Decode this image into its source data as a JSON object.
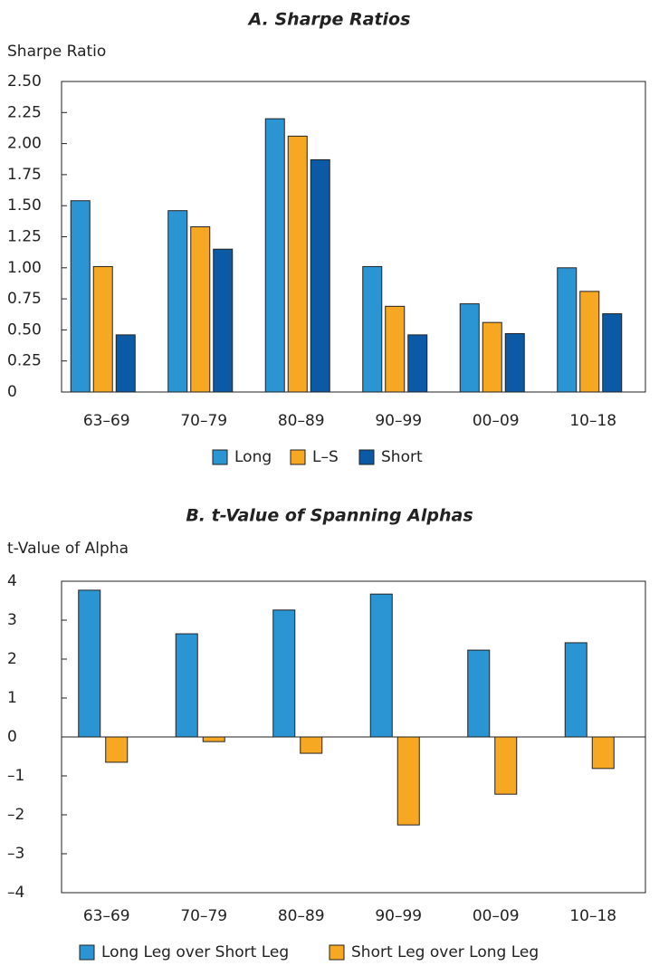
{
  "chart_data": [
    {
      "type": "bar",
      "title": "A. Sharpe Ratios",
      "y_label": "Sharpe Ratio",
      "categories": [
        "63–69",
        "70–79",
        "80–89",
        "90–99",
        "00–09",
        "10–18"
      ],
      "series": [
        {
          "name": "Long",
          "color": "#2b95d3",
          "values": [
            1.54,
            1.46,
            2.2,
            1.01,
            0.71,
            1.0
          ]
        },
        {
          "name": "L–S",
          "color": "#f7a823",
          "values": [
            1.01,
            1.33,
            2.06,
            0.69,
            0.56,
            0.81
          ]
        },
        {
          "name": "Short",
          "color": "#0c5aa6",
          "values": [
            0.46,
            1.15,
            1.87,
            0.46,
            0.47,
            0.63
          ]
        }
      ],
      "ylim": [
        0,
        2.5
      ],
      "yticks": [
        0,
        0.25,
        {
          "value": 0.5,
          "label": "0.50"
        },
        0.75,
        {
          "value": 1,
          "label": "1.00"
        },
        1.25,
        {
          "value": 1.5,
          "label": "1.50"
        },
        1.75,
        {
          "value": 2,
          "label": "2.00"
        },
        2.25,
        {
          "value": 2.5,
          "label": "2.50"
        }
      ]
    },
    {
      "type": "bar",
      "title": "B. t-Value of Spanning Alphas",
      "y_label": "t-Value of Alpha",
      "categories": [
        "63–69",
        "70–79",
        "80–89",
        "90–99",
        "00–09",
        "10–18"
      ],
      "series": [
        {
          "name": "Long Leg over Short Leg",
          "color": "#2b95d3",
          "values": [
            3.77,
            2.65,
            3.26,
            3.67,
            2.23,
            2.42
          ]
        },
        {
          "name": "Short Leg over Long Leg",
          "color": "#f7a823",
          "values": [
            -0.65,
            -0.12,
            -0.42,
            -2.26,
            -1.47,
            -0.81
          ]
        }
      ],
      "ylim": [
        -4,
        4
      ],
      "yticks": [
        {
          "value": -4,
          "label": "–4"
        },
        {
          "value": -3,
          "label": "–3"
        },
        {
          "value": -2,
          "label": "–2"
        },
        {
          "value": -1,
          "label": "–1"
        },
        0,
        1,
        2,
        3,
        4
      ]
    }
  ]
}
